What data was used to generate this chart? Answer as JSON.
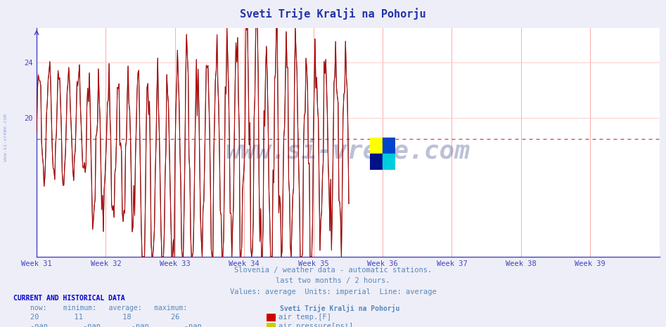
{
  "title": "Sveti Trije Kralji na Pohorju",
  "bg_color": "#eeeef8",
  "plot_bg_color": "#ffffff",
  "x_tick_labels": [
    "Week 31",
    "Week 32",
    "Week 33",
    "Week 34",
    "Week 35",
    "Week 36",
    "Week 37",
    "Week 38",
    "Week 39"
  ],
  "y_ticks": [
    20,
    24
  ],
  "ylim_min": 10,
  "ylim_max": 26.5,
  "n_weeks": 9,
  "grid_color_v": "#ffaaaa",
  "grid_color_h": "#ffcccc",
  "axis_color": "#4444bb",
  "title_color": "#2233aa",
  "avg_line_value": 18.5,
  "avg_line_color": "#cc4444",
  "footer_lines": [
    "Slovenia / weather data - automatic stations.",
    "last two months / 2 hours.",
    "Values: average  Units: imperial  Line: average"
  ],
  "footer_color": "#5588bb",
  "current_label": "CURRENT AND HISTORICAL DATA",
  "current_color": "#0000cc",
  "table_color": "#5588bb",
  "now": "20",
  "minimum": "11",
  "average": "18",
  "maximum": "26",
  "station": "Sveti Trije Kralji na Pohorju",
  "series1_color": "#cc0000",
  "series1_label": "air temp.[F]",
  "series2_color": "#cccc00",
  "series2_label": "air pressure[psi]",
  "watermark_text": "www.si-vreme.com",
  "watermark_color": "#223377",
  "watermark_alpha": 0.3,
  "left_label": "www.si-vreme.com",
  "left_label_color": "#6688cc",
  "logo_colors": [
    "#ffff00",
    "#0055cc",
    "#00ccdd",
    "#002288"
  ]
}
